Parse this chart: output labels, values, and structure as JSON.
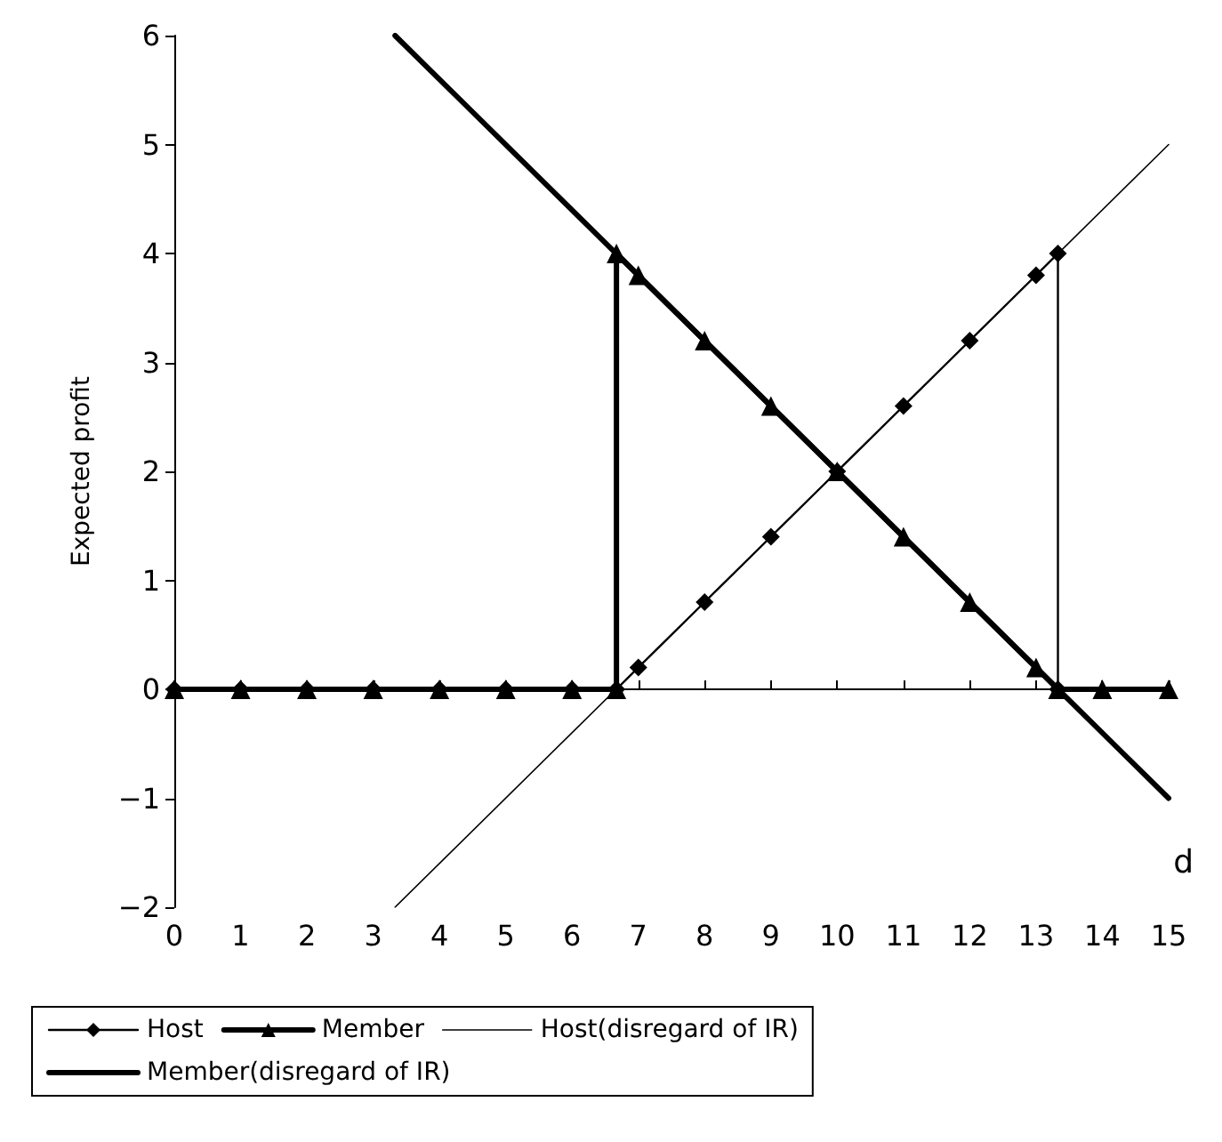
{
  "chart_data": {
    "type": "line",
    "ylabel": "Expected profit",
    "xlabel": "d",
    "xlim": [
      0,
      15
    ],
    "xticks": [
      0,
      1,
      2,
      3,
      4,
      5,
      6,
      7,
      8,
      9,
      10,
      11,
      12,
      13,
      14,
      15
    ],
    "ylim": [
      -2,
      6
    ],
    "yticks": [
      -2,
      -1,
      0,
      1,
      2,
      3,
      4,
      5,
      6
    ],
    "legend": "bottom",
    "line_style": "solid",
    "series": [
      {
        "name": "Host",
        "color": "#000000",
        "marker": "diamond",
        "x": [
          0,
          1,
          2,
          3,
          4,
          5,
          6,
          6.67,
          7,
          8,
          9,
          10,
          11,
          12,
          13,
          13.33,
          13.33
        ],
        "values": [
          0,
          0,
          0,
          0,
          0,
          0,
          0,
          0,
          0.2,
          0.8,
          1.4,
          2,
          2.6,
          3.2,
          3.8,
          4,
          0
        ]
      },
      {
        "name": "Member",
        "color": "#000000",
        "marker": "triangle",
        "x": [
          0,
          1,
          2,
          3,
          4,
          5,
          6,
          6.67,
          6.67,
          7,
          8,
          9,
          10,
          11,
          12,
          13,
          13.33,
          14,
          15
        ],
        "values": [
          0,
          0,
          0,
          0,
          0,
          0,
          0,
          0,
          4,
          3.8,
          3.2,
          2.6,
          2,
          1.4,
          0.8,
          0.2,
          0,
          0,
          0
        ]
      },
      {
        "name": "Host(disregard of IR)",
        "color": "#000000",
        "marker": "none",
        "x": [
          3.33,
          15
        ],
        "values": [
          -2,
          5
        ]
      },
      {
        "name": "Member(disregard of IR)",
        "color": "#000000",
        "marker": "none",
        "x": [
          3.33,
          15
        ],
        "values": [
          6,
          -1
        ]
      }
    ]
  }
}
